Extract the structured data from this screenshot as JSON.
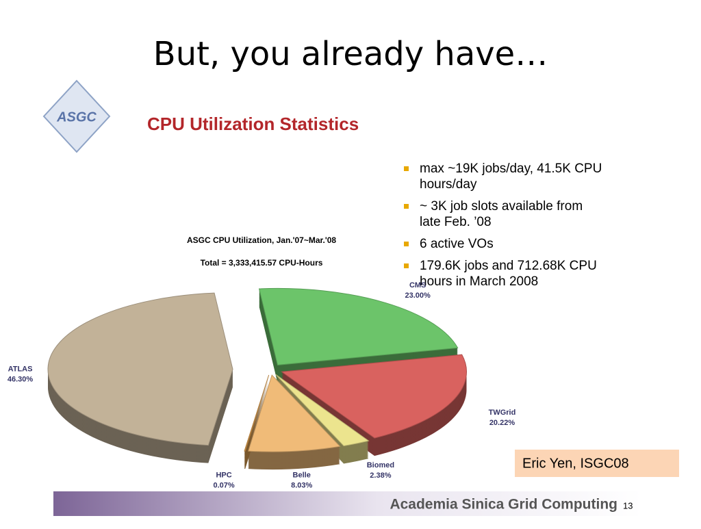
{
  "slide_title": "But, you already have…",
  "heading": "CPU Utilization Statistics",
  "logo": "ASGC",
  "bullets": [
    "max ~19K jobs/day, 41.5K CPU hours/day",
    "~ 3K job slots available from late Feb. ’08",
    "6 active VOs",
    "179.6K jobs and 712.68K CPU hours in March 2008"
  ],
  "credit": "Eric Yen, ISGC08",
  "footer": "Academia Sinica Grid Computing",
  "page_number": "13",
  "chart_data": {
    "type": "pie",
    "title": "ASGC CPU Utilization, Jan.'07~Mar.'08",
    "subtitle": "Total = 3,333,415.57 CPU-Hours",
    "categories": [
      "CMS",
      "TWGrid",
      "Biomed",
      "Belle",
      "HPC",
      "ATLAS"
    ],
    "values": [
      23,
      20.22,
      2.38,
      8.03,
      0.07,
      46.3
    ],
    "value_labels": [
      "23.00%",
      "20.22%",
      "2.38%",
      "8.03%",
      "0.07%",
      "46.30%"
    ],
    "colors": [
      "#6cc46a",
      "#d9625f",
      "#ece48e",
      "#f0bb78",
      "#e0a050",
      "#c2b298"
    ]
  }
}
